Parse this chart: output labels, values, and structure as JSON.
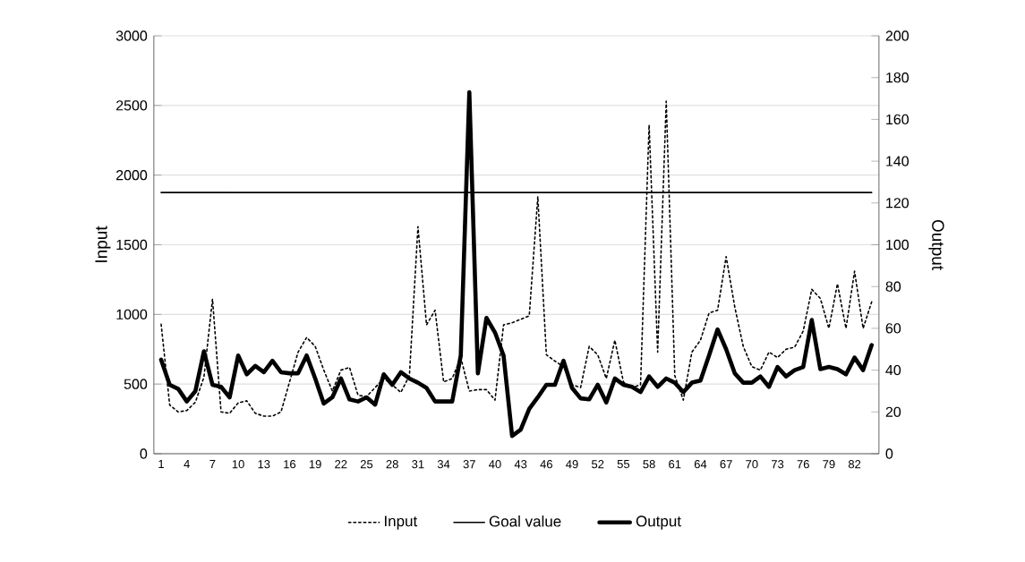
{
  "chart_data": {
    "type": "line",
    "ylabel": "Input",
    "y2label": "Output",
    "categories": [
      "1",
      null,
      null,
      "4",
      null,
      null,
      "7",
      null,
      null,
      "10",
      null,
      null,
      "13",
      null,
      null,
      "16",
      null,
      null,
      "19",
      null,
      null,
      "22",
      null,
      null,
      "25",
      null,
      null,
      "28",
      null,
      null,
      "31",
      null,
      null,
      "34",
      null,
      null,
      "37",
      null,
      null,
      "40",
      null,
      null,
      "43",
      null,
      null,
      "46",
      null,
      null,
      "49",
      null,
      null,
      "52",
      null,
      null,
      "55",
      null,
      null,
      "58",
      null,
      null,
      "61",
      null,
      null,
      "64",
      null,
      null,
      "67",
      null,
      null,
      "70",
      null,
      null,
      "73",
      null,
      null,
      "76",
      null,
      null,
      "79",
      null,
      null,
      "82",
      null,
      null
    ],
    "series": [
      {
        "name": "Input",
        "color": "#000000",
        "line_style": "dotted",
        "values": [
          930,
          350,
          300,
          310,
          370,
          550,
          1110,
          300,
          290,
          365,
          380,
          290,
          270,
          270,
          300,
          515,
          730,
          835,
          770,
          600,
          450,
          600,
          620,
          420,
          410,
          475,
          540,
          495,
          440,
          560,
          1630,
          925,
          1030,
          515,
          540,
          690,
          450,
          460,
          460,
          385,
          925,
          940,
          965,
          990,
          1845,
          710,
          665,
          625,
          495,
          475,
          770,
          710,
          540,
          815,
          515,
          475,
          495,
          2360,
          730,
          2530,
          560,
          385,
          730,
          815,
          1010,
          1030,
          1415,
          1055,
          770,
          625,
          600,
          730,
          690,
          750,
          765,
          880,
          1180,
          1115,
          900,
          1220,
          900,
          1310,
          900,
          1090
        ]
      },
      {
        "name": "Goal value",
        "color": "#000000",
        "line_style": "solid",
        "axis": "y2",
        "values": [
          125,
          125,
          125,
          125,
          125,
          125,
          125,
          125,
          125,
          125,
          125,
          125,
          125,
          125,
          125,
          125,
          125,
          125,
          125,
          125,
          125,
          125,
          125,
          125,
          125,
          125,
          125,
          125,
          125,
          125,
          125,
          125,
          125,
          125,
          125,
          125,
          125,
          125,
          125,
          125,
          125,
          125,
          125,
          125,
          125,
          125,
          125,
          125,
          125,
          125,
          125,
          125,
          125,
          125,
          125,
          125,
          125,
          125,
          125,
          125,
          125,
          125,
          125,
          125,
          125,
          125,
          125,
          125,
          125,
          125,
          125,
          125,
          125,
          125,
          125,
          125,
          125,
          125,
          125,
          125,
          125,
          125,
          125,
          125
        ]
      },
      {
        "name": "Output",
        "color": "#000000",
        "line_style": "solid",
        "axis": "y2",
        "values": [
          45,
          33,
          31,
          25,
          30,
          49,
          33,
          32,
          27,
          47,
          38,
          42,
          39,
          44.5,
          39,
          38.5,
          38.5,
          47,
          36,
          24,
          27,
          36,
          26,
          25,
          27,
          23.5,
          38,
          33,
          39,
          36,
          34,
          31.5,
          25,
          25,
          25,
          47,
          173,
          38.5,
          65,
          58,
          47,
          8.5,
          11.5,
          21.5,
          27,
          33,
          33,
          44.5,
          31.5,
          26.5,
          26,
          33,
          24.5,
          36,
          33,
          32,
          29.5,
          37,
          32,
          36,
          34,
          29.5,
          34,
          35,
          47,
          59.5,
          50,
          38.5,
          34,
          34,
          37,
          32,
          41.5,
          37,
          40,
          41.5,
          64,
          40.5,
          41.5,
          40.5,
          38,
          46,
          40,
          52
        ]
      }
    ],
    "ylim": [
      0,
      3000
    ],
    "yticks": [
      0,
      500,
      1000,
      1500,
      2000,
      2500,
      3000
    ],
    "y2lim": [
      0,
      200
    ],
    "y2ticks": [
      0,
      20,
      40,
      60,
      80,
      100,
      120,
      140,
      160,
      180,
      200
    ],
    "grid": "y",
    "legend": "bottom"
  }
}
